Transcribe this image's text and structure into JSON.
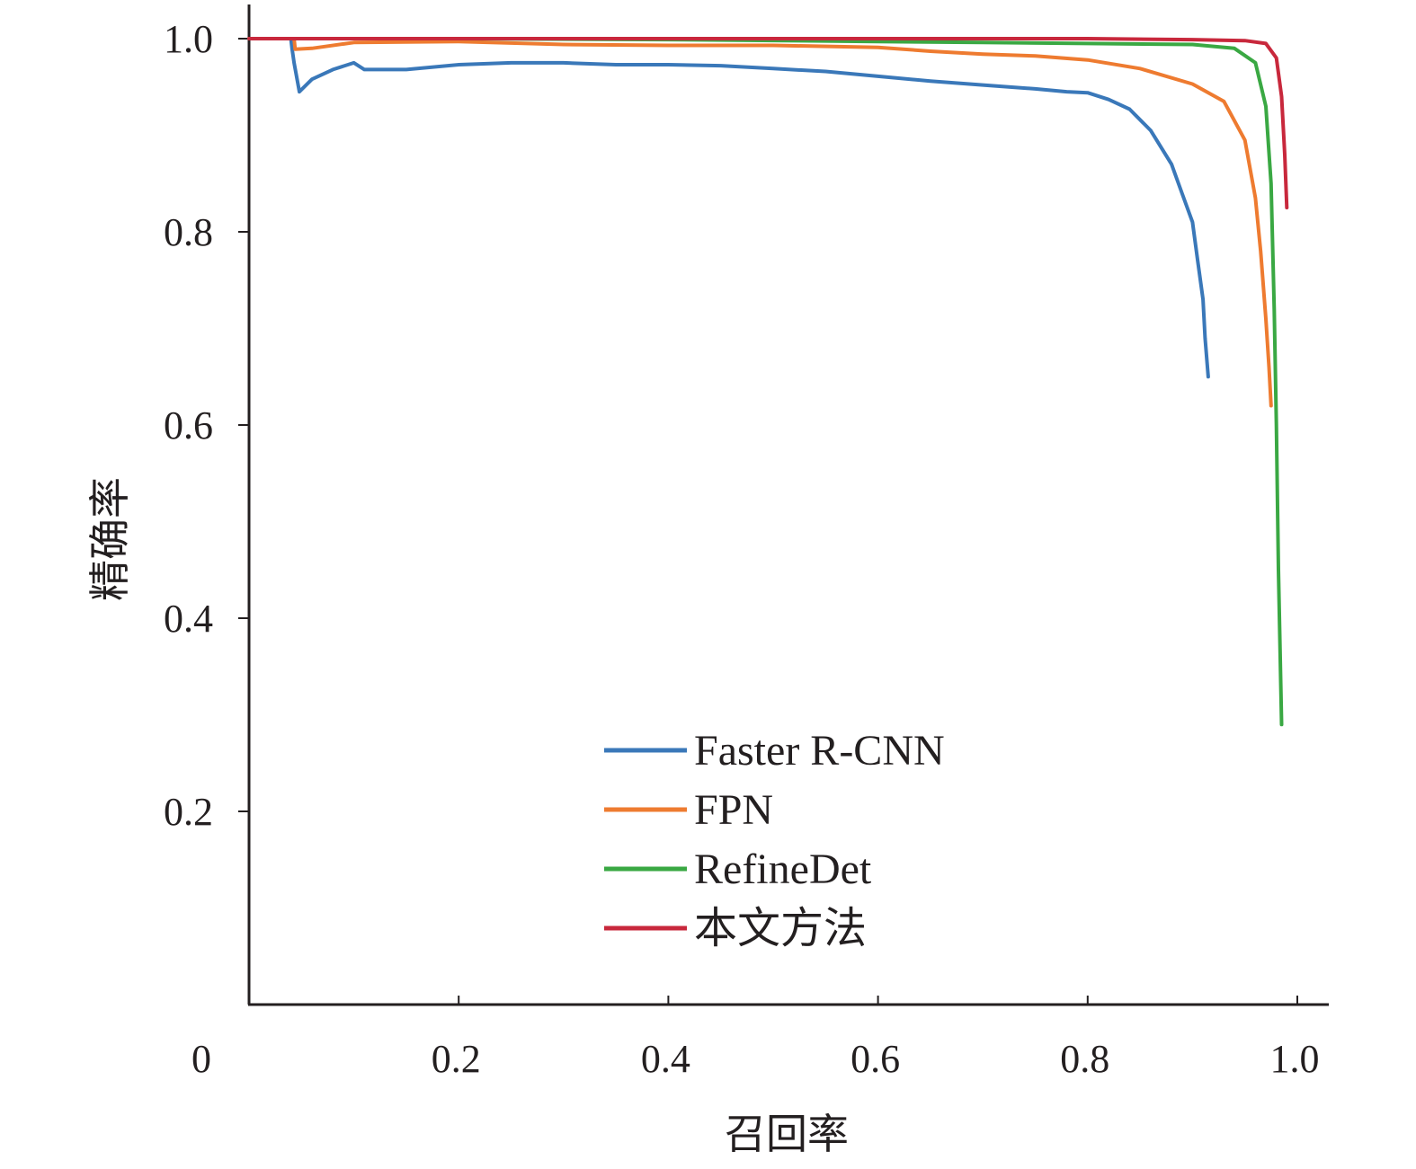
{
  "chart_data": {
    "type": "line",
    "title": "",
    "xlabel": "召回率",
    "ylabel": "精确率",
    "xlim": [
      0,
      1.0
    ],
    "ylim": [
      0,
      1.0
    ],
    "xticks": [
      0.2,
      0.4,
      0.6,
      0.8,
      1.0
    ],
    "xtick_labels": [
      "0.2",
      "0.4",
      "0.6",
      "0.8",
      "1.0"
    ],
    "origin_label": "0",
    "yticks": [
      0.2,
      0.4,
      0.6,
      0.8,
      1.0
    ],
    "ytick_labels": [
      "0.2",
      "0.4",
      "0.6",
      "0.8",
      "1.0"
    ],
    "grid": false,
    "legend_position": "lower-center",
    "series": [
      {
        "name": "Faster R-CNN",
        "color": "#3a78b9",
        "x": [
          0.0,
          0.04,
          0.041,
          0.043,
          0.048,
          0.06,
          0.08,
          0.1,
          0.11,
          0.12,
          0.15,
          0.2,
          0.25,
          0.3,
          0.35,
          0.4,
          0.45,
          0.5,
          0.55,
          0.6,
          0.65,
          0.7,
          0.75,
          0.78,
          0.8,
          0.82,
          0.84,
          0.86,
          0.88,
          0.89,
          0.9,
          0.905,
          0.91,
          0.912,
          0.915
        ],
        "y": [
          1.0,
          1.0,
          0.99,
          0.975,
          0.945,
          0.958,
          0.968,
          0.975,
          0.968,
          0.968,
          0.968,
          0.973,
          0.975,
          0.975,
          0.973,
          0.973,
          0.972,
          0.969,
          0.966,
          0.961,
          0.956,
          0.952,
          0.948,
          0.945,
          0.944,
          0.937,
          0.927,
          0.905,
          0.87,
          0.84,
          0.81,
          0.77,
          0.73,
          0.69,
          0.65
        ]
      },
      {
        "name": "FPN",
        "color": "#ee7b30",
        "x": [
          0.0,
          0.043,
          0.044,
          0.06,
          0.1,
          0.2,
          0.3,
          0.4,
          0.5,
          0.6,
          0.65,
          0.7,
          0.75,
          0.8,
          0.85,
          0.9,
          0.93,
          0.95,
          0.96,
          0.965,
          0.97,
          0.973,
          0.975
        ],
        "y": [
          1.0,
          1.0,
          0.989,
          0.99,
          0.996,
          0.997,
          0.994,
          0.993,
          0.993,
          0.991,
          0.987,
          0.984,
          0.982,
          0.978,
          0.969,
          0.953,
          0.935,
          0.895,
          0.835,
          0.78,
          0.71,
          0.66,
          0.62
        ]
      },
      {
        "name": "RefineDet",
        "color": "#3aa843",
        "x": [
          0.0,
          0.2,
          0.4,
          0.6,
          0.7,
          0.8,
          0.9,
          0.94,
          0.96,
          0.97,
          0.975,
          0.978,
          0.98,
          0.982,
          0.985
        ],
        "y": [
          1.0,
          1.0,
          0.999,
          0.997,
          0.996,
          0.995,
          0.994,
          0.99,
          0.975,
          0.93,
          0.85,
          0.72,
          0.6,
          0.45,
          0.29
        ]
      },
      {
        "name": "本文方法",
        "color": "#c8283c",
        "x": [
          0.0,
          0.3,
          0.6,
          0.8,
          0.9,
          0.95,
          0.97,
          0.98,
          0.985,
          0.988,
          0.99
        ],
        "y": [
          1.0,
          1.0,
          1.0,
          1.0,
          0.999,
          0.998,
          0.995,
          0.98,
          0.94,
          0.88,
          0.825
        ]
      }
    ]
  }
}
